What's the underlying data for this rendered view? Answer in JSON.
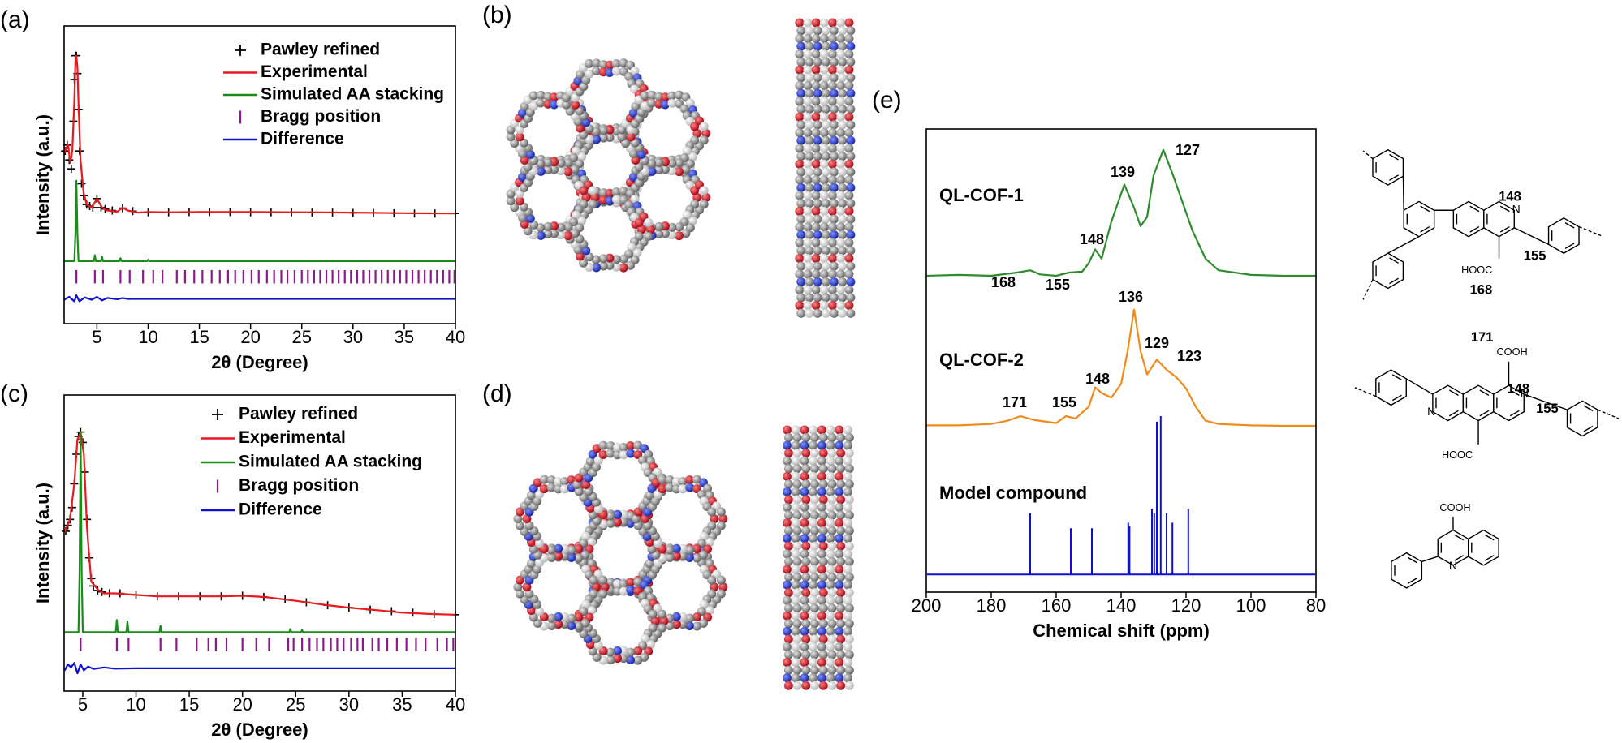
{
  "chart_data": [
    {
      "type": "line",
      "panel_label": "(a)",
      "xlabel": "2θ (Degree)",
      "ylabel": "Intensity (a.u.)",
      "xlim": [
        1.8,
        40
      ],
      "ylim": [
        0,
        100
      ],
      "xticks": [
        5,
        10,
        15,
        20,
        25,
        30,
        35,
        40
      ],
      "legend": "upper right",
      "series": [
        {
          "name": "Pawley refined",
          "color": "#000000",
          "marker": "+",
          "x": [
            1.9,
            2.1,
            2.3,
            2.5,
            2.7,
            2.8,
            2.9,
            3.0,
            3.1,
            3.2,
            3.3,
            3.5,
            3.7,
            4.0,
            4.3,
            4.6,
            5.0,
            5.4,
            5.8,
            6.5,
            7.5,
            8.5,
            10,
            12,
            14,
            16,
            18,
            20,
            22,
            24,
            26,
            28,
            30,
            32,
            34,
            36,
            38,
            40
          ],
          "values": [
            58,
            60,
            55,
            52,
            68,
            82,
            90,
            90,
            84,
            72,
            58,
            47,
            43,
            40,
            39.5,
            39,
            42,
            39,
            38.5,
            38,
            38.8,
            37.8,
            37.4,
            37.4,
            37.5,
            37.5,
            37.5,
            37.4,
            37.4,
            37.4,
            37.3,
            37.3,
            37.2,
            37.2,
            37.1,
            37,
            37,
            37
          ]
        },
        {
          "name": "Experimental",
          "color": "#e8191f",
          "x": [
            1.8,
            2.0,
            2.2,
            2.4,
            2.6,
            2.8,
            2.9,
            3.0,
            3.1,
            3.2,
            3.4,
            3.7,
            4.0,
            4.5,
            5.0,
            5.5,
            6.0,
            7.0,
            7.5,
            8.0,
            9,
            10,
            12,
            15,
            20,
            25,
            30,
            35,
            40
          ],
          "values": [
            57,
            59,
            60,
            54,
            58,
            75,
            88,
            90,
            86,
            74,
            55,
            44,
            40,
            39,
            42,
            39,
            38,
            37.6,
            39,
            38,
            37.3,
            37.5,
            37.4,
            37.5,
            37.5,
            37.4,
            37.3,
            37.1,
            37
          ]
        },
        {
          "name": "Simulated AA stacking",
          "color": "#1a8c1a",
          "x": [
            1.8,
            2.8,
            2.9,
            3.0,
            3.1,
            3.2,
            4.7,
            4.8,
            4.9,
            5.4,
            5.5,
            5.6,
            7.2,
            7.3,
            7.4,
            9.9,
            10.0,
            10.1,
            40
          ],
          "values": [
            21,
            21,
            30,
            48,
            30,
            21,
            21,
            23,
            21,
            21,
            22.5,
            21,
            21,
            22,
            21,
            21,
            21.5,
            21,
            21
          ]
        },
        {
          "name": "Bragg position",
          "color": "#8b1a8b",
          "marker": "|",
          "x": [
            3.0,
            4.8,
            5.6,
            7.3,
            8.2,
            9.5,
            10.5,
            11.4,
            12.8,
            13.6,
            14.5,
            15.3,
            16.2,
            17.0,
            17.8,
            18.5,
            19.3,
            20.1,
            20.8,
            21.6,
            22.3,
            23.0,
            23.6,
            24.3,
            25.0,
            25.6,
            26.2,
            26.8,
            27.4,
            28.0,
            28.6,
            29.2,
            29.8,
            30.4,
            31.0,
            31.6,
            32.2,
            32.8,
            33.4,
            34.0,
            34.6,
            35.2,
            35.8,
            36.4,
            37.0,
            37.6,
            38.2,
            38.8,
            39.4,
            39.9
          ]
        },
        {
          "name": "Difference",
          "color": "#1010d0",
          "x": [
            1.8,
            2.3,
            2.8,
            3.0,
            3.3,
            3.8,
            4.5,
            5.0,
            5.5,
            6.0,
            7.0,
            7.5,
            8.0,
            10,
            40
          ],
          "values": [
            8,
            9,
            7.5,
            9.5,
            7.5,
            8.8,
            8,
            9,
            7.8,
            8.6,
            8.2,
            8.6,
            8.3,
            8.3,
            8.3
          ]
        }
      ]
    },
    {
      "type": "line",
      "panel_label": "(c)",
      "xlabel": "2θ (Degree)",
      "ylabel": "Intensity (a.u.)",
      "xlim": [
        3.25,
        40
      ],
      "ylim": [
        0,
        100
      ],
      "xticks": [
        5,
        10,
        15,
        20,
        25,
        30,
        35,
        40
      ],
      "legend": "upper right",
      "series": [
        {
          "name": "Pawley refined",
          "color": "#000000",
          "marker": "+",
          "x": [
            3.4,
            3.6,
            3.8,
            4.0,
            4.2,
            4.4,
            4.6,
            4.8,
            5.0,
            5.2,
            5.4,
            5.6,
            5.8,
            6.0,
            6.4,
            6.8,
            7.5,
            8.5,
            10,
            12,
            14,
            16,
            18,
            20,
            22,
            24,
            26,
            28,
            30,
            32,
            34,
            36,
            38,
            40
          ],
          "values": [
            54,
            56,
            58,
            62,
            70,
            80,
            86,
            87.5,
            84,
            74,
            58,
            45,
            38,
            35.5,
            34,
            33.5,
            33,
            33,
            32.5,
            32,
            32,
            32,
            32,
            32.2,
            31.8,
            31,
            30,
            29,
            28.2,
            27.5,
            27,
            26.5,
            26,
            25.8
          ]
        },
        {
          "name": "Experimental",
          "color": "#e8191f",
          "x": [
            3.3,
            3.8,
            4.2,
            4.5,
            4.8,
            5.1,
            5.4,
            5.8,
            6.5,
            7,
            8,
            10,
            12,
            15,
            18,
            20,
            22,
            25,
            28,
            30,
            33,
            35,
            38,
            40
          ],
          "values": [
            53.7,
            58,
            70,
            85,
            87.5,
            80,
            55,
            37,
            34,
            33,
            33,
            32.5,
            32,
            32,
            32,
            32.2,
            31.8,
            30.5,
            29,
            28.2,
            27.2,
            26.5,
            26,
            25.8
          ]
        },
        {
          "name": "Simulated AA stacking",
          "color": "#1a8c1a",
          "x": [
            3.3,
            4.6,
            4.7,
            4.8,
            4.9,
            5.0,
            8.1,
            8.2,
            8.3,
            9.1,
            9.2,
            9.3,
            12.2,
            12.3,
            12.4,
            24.4,
            24.5,
            24.6,
            25.5,
            25.6,
            25.7,
            40
          ],
          "values": [
            19.9,
            19.9,
            40,
            87.5,
            40,
            19.9,
            19.9,
            24,
            19.9,
            19.9,
            23.5,
            19.9,
            19.9,
            22,
            19.9,
            19.9,
            21,
            19.9,
            19.9,
            20.6,
            19.9,
            19.9
          ]
        },
        {
          "name": "Bragg position",
          "color": "#8b1a8b",
          "marker": "|",
          "x": [
            4.8,
            8.2,
            9.3,
            12.3,
            13.8,
            15.7,
            16.8,
            17.5,
            18.5,
            20.0,
            21.3,
            22.5,
            24.3,
            24.8,
            25.6,
            26.3,
            27.0,
            27.6,
            28.3,
            28.9,
            29.5,
            30.2,
            30.8,
            31.3,
            32.2,
            32.8,
            33.6,
            34.5,
            35.4,
            36.3,
            37.2,
            38.3,
            39.2,
            39.8
          ]
        },
        {
          "name": "Difference",
          "color": "#1010d0",
          "x": [
            3.3,
            3.6,
            3.9,
            4.2,
            4.5,
            4.8,
            5.1,
            5.5,
            6,
            7,
            8,
            10,
            15,
            40
          ],
          "values": [
            7,
            9,
            8,
            9.5,
            6,
            9,
            7,
            8.3,
            7.5,
            8,
            7.6,
            7.7,
            7.7,
            7.7
          ]
        }
      ]
    },
    {
      "type": "line",
      "panel_label": "(e)",
      "xlabel": "Chemical shift (ppm)",
      "xlim": [
        200,
        80
      ],
      "ylim": [
        0,
        100
      ],
      "xticks": [
        200,
        180,
        160,
        140,
        120,
        100,
        80
      ],
      "series": [
        {
          "name": "QL-COF-1",
          "color": "#2e8b2e",
          "x": [
            200,
            190,
            180,
            172,
            168,
            165,
            160,
            156,
            152,
            150,
            148,
            146,
            143,
            139,
            136,
            134,
            132,
            130,
            127,
            124,
            121,
            118,
            114,
            110,
            100,
            90,
            80
          ],
          "values": [
            68.3,
            68.5,
            68.3,
            69,
            69.5,
            68.6,
            68.3,
            69,
            69.2,
            71,
            74,
            72,
            80,
            88,
            83,
            79,
            81,
            90,
            95.5,
            90,
            84,
            78,
            72,
            69.5,
            68.5,
            68.3,
            68.3
          ]
        },
        {
          "name": "QL-COF-2",
          "color": "#f08a1a",
          "x": [
            200,
            190,
            180,
            175,
            171,
            167,
            160,
            157,
            154,
            150,
            148,
            146,
            143,
            140,
            138,
            136,
            134,
            132,
            129,
            126,
            123,
            120,
            117,
            114,
            110,
            100,
            90,
            80
          ],
          "values": [
            36,
            36,
            36.3,
            37,
            38,
            37.2,
            36.5,
            38,
            37.5,
            40,
            44.2,
            43,
            42,
            45,
            52,
            61,
            52,
            47,
            50.2,
            48,
            46.4,
            44,
            40,
            37,
            36.3,
            36,
            35.9,
            35.9
          ]
        },
        {
          "name": "Model compound",
          "color": "#1010d0",
          "baseline": 3.8,
          "x": [
            168,
            155.5,
            149,
            137.8,
            137.4,
            130.5,
            129.8,
            129,
            127.8,
            126,
            124.2,
            119.3
          ],
          "values": [
            17,
            13.8,
            13.8,
            15,
            14.3,
            18,
            17,
            36.8,
            38,
            17,
            15,
            18
          ]
        }
      ],
      "annotations": [
        {
          "text": "139",
          "color": "#000000"
        },
        {
          "text": "127",
          "color": "#000000"
        },
        {
          "text": "168",
          "color": "#e8202a"
        },
        {
          "text": "155",
          "color": "#3a5f9a"
        },
        {
          "text": "148",
          "color": "#3a5f9a"
        },
        {
          "text": "136",
          "color": "#000000"
        },
        {
          "text": "129",
          "color": "#000000"
        },
        {
          "text": "123",
          "color": "#000000"
        },
        {
          "text": "171",
          "color": "#e8202a"
        },
        {
          "text": "155",
          "color": "#3a5f9a"
        },
        {
          "text": "148",
          "color": "#3a5f9a"
        }
      ]
    }
  ],
  "panel_labels": [
    "(b)",
    "(d)"
  ],
  "structures": {
    "top": [
      "N",
      "148",
      "155",
      "HOOC",
      "168"
    ],
    "middle": [
      "171",
      "COOH",
      "N",
      "148",
      "N",
      "155",
      "HOOC"
    ],
    "bottom": [
      "COOH",
      "N"
    ]
  }
}
